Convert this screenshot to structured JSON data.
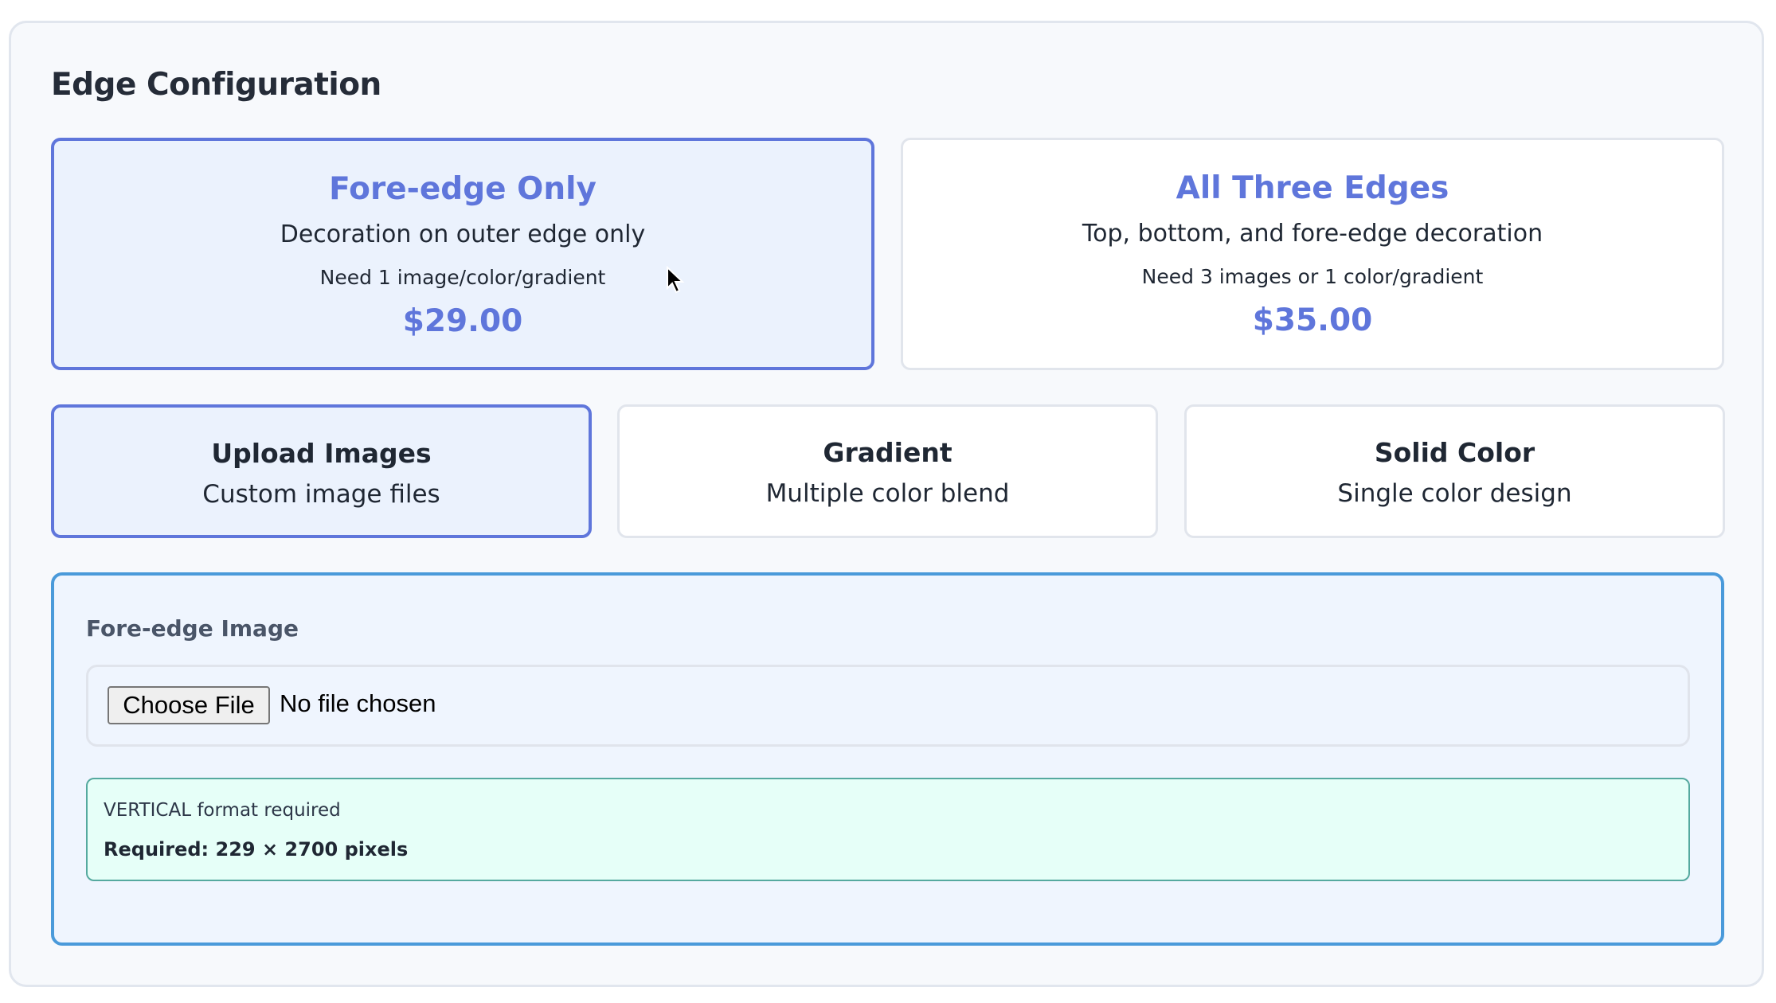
{
  "section_title": "Edge Configuration",
  "edge_options": [
    {
      "title": "Fore-edge Only",
      "description": "Decoration on outer edge only",
      "need": "Need 1 image/color/gradient",
      "price": "$29.00",
      "selected": true
    },
    {
      "title": "All Three Edges",
      "description": "Top, bottom, and fore-edge decoration",
      "need": "Need 3 images or 1 color/gradient",
      "price": "$35.00",
      "selected": false
    }
  ],
  "design_modes": [
    {
      "title": "Upload Images",
      "description": "Custom image files",
      "selected": true
    },
    {
      "title": "Gradient",
      "description": "Multiple color blend",
      "selected": false
    },
    {
      "title": "Solid Color",
      "description": "Single color design",
      "selected": false
    }
  ],
  "upload": {
    "label": "Fore-edge Image",
    "choose_button": "Choose File",
    "file_status": "No file chosen",
    "format_note": "VERTICAL format required",
    "size_requirement": "Required: 229 × 2700 pixels"
  },
  "colors": {
    "accent": "#5f76db",
    "upload_border": "#4a9ada",
    "info_bg": "#e6fff8",
    "info_border": "#55a99f"
  }
}
